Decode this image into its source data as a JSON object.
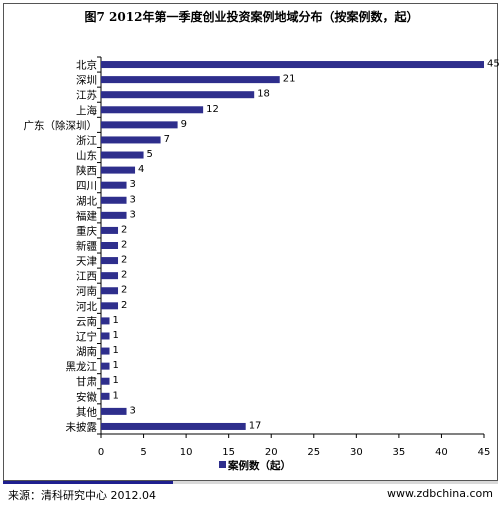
{
  "page": {
    "title": "图7 2012年第一季度创业投资案例地域分布（按案例数，起）",
    "source": "来源：清科研究中心 2012.04",
    "website": "www.zdbchina.com"
  },
  "chart_data": {
    "type": "bar",
    "orientation": "horizontal",
    "title": "图7 2012年第一季度创业投资案例地域分布（按案例数，起）",
    "categories": [
      "北京",
      "深圳",
      "江苏",
      "上海",
      "广东（除深圳）",
      "浙江",
      "山东",
      "陕西",
      "四川",
      "湖北",
      "福建",
      "重庆",
      "新疆",
      "天津",
      "江西",
      "河南",
      "河北",
      "云南",
      "辽宁",
      "湖南",
      "黑龙江",
      "甘肃",
      "安徽",
      "其他",
      "未披露"
    ],
    "series": [
      {
        "name": "案例数（起）",
        "values": [
          45,
          21,
          18,
          12,
          9,
          7,
          5,
          4,
          3,
          3,
          3,
          2,
          2,
          2,
          2,
          2,
          2,
          1,
          1,
          1,
          1,
          1,
          1,
          3,
          17
        ],
        "color": "#2e2e8c"
      }
    ],
    "xlim": [
      0,
      45
    ],
    "xticks": [
      0,
      5,
      10,
      15,
      20,
      25,
      30,
      35,
      40,
      45
    ],
    "xlabel": "",
    "ylabel": "",
    "grid": false,
    "legend_position": "bottom"
  }
}
